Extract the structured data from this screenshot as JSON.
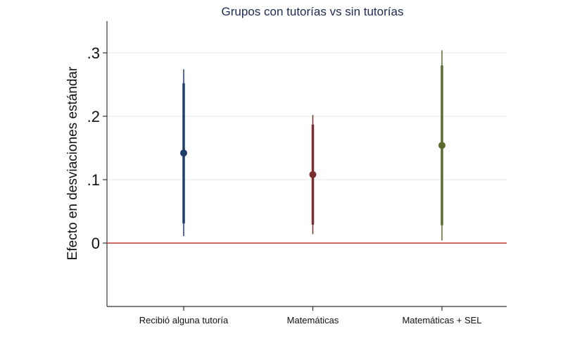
{
  "chart_data": {
    "type": "scatter",
    "title": "Grupos con tutorías vs sin tutorías",
    "ylabel": "Efecto en desviaciones estándar",
    "xlabel": "",
    "ylim": [
      -0.1,
      0.35
    ],
    "yticks": [
      0,
      0.1,
      0.2,
      0.3
    ],
    "ytick_labels": [
      "0",
      ".1",
      ".2",
      ".3"
    ],
    "grid": true,
    "reference_line": {
      "y": 0,
      "color": "#c0392b"
    },
    "categories": [
      "Recibió alguna tutoría",
      "Matemáticas",
      "Matemáticas + SEL"
    ],
    "series": [
      {
        "category": "Recibió alguna tutoría",
        "estimate": 0.142,
        "ci95": [
          0.011,
          0.274
        ],
        "ci90": [
          0.031,
          0.252
        ],
        "color": "#1f3d6b"
      },
      {
        "category": "Matemáticas",
        "estimate": 0.108,
        "ci95": [
          0.014,
          0.202
        ],
        "ci90": [
          0.029,
          0.187
        ],
        "color": "#7a2e2e"
      },
      {
        "category": "Matemáticas + SEL",
        "estimate": 0.154,
        "ci95": [
          0.004,
          0.304
        ],
        "ci90": [
          0.028,
          0.28
        ],
        "color": "#5a6b2e"
      }
    ]
  }
}
